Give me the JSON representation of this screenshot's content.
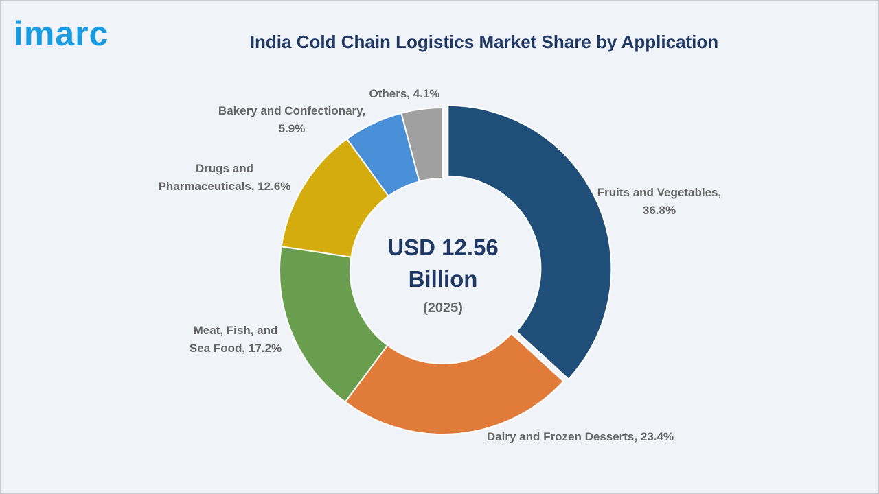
{
  "brand": "imarc",
  "chart_data": {
    "type": "donut",
    "title": "India Cold Chain Logistics Market Share by Application",
    "center_label": "USD 12.56 Billion",
    "center_sublabel": "(2025)",
    "categories": [
      "Fruits and Vegetables,",
      "Dairy and Frozen Desserts,",
      "Meat, Fish, and Sea Food,",
      "Drugs and Pharmaceuticals,",
      "Bakery and Confectionary,",
      "Others,"
    ],
    "values": [
      36.8,
      23.4,
      17.2,
      12.6,
      5.9,
      4.1
    ],
    "value_labels": [
      "36.8%",
      "23.4%",
      "17.2%",
      "12.6%",
      "5.9%",
      "4.1%"
    ],
    "colors": [
      "#1f4e79",
      "#e07b39",
      "#6a9e4f",
      "#d4ac0d",
      "#4a90d9",
      "#a0a0a0"
    ]
  }
}
